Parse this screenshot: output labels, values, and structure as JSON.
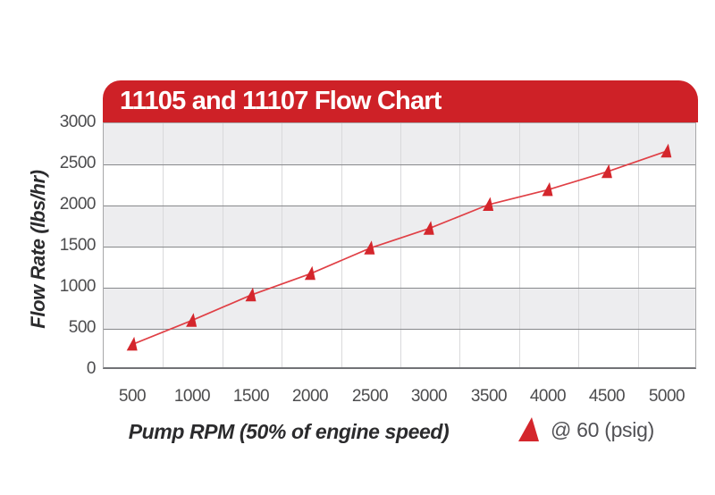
{
  "header": {
    "title": "11105 and 11107 Flow Chart"
  },
  "colors": {
    "banner_red": "#ce2127",
    "marker_red": "#d4262c",
    "line_red": "#e04046",
    "band_gray": "#ededef",
    "grid_dark": "#87888b",
    "grid_light": "#d9d9db",
    "tick_text": "#4c4c4e",
    "axis_title_text": "#2b2b2d",
    "legend_text": "#515155"
  },
  "chart_data": {
    "type": "line",
    "title": "11105 and 11107 Flow Chart",
    "xlabel": "Pump RPM (50% of engine speed)",
    "ylabel": "Flow Rate (lbs/hr)",
    "x": [
      500,
      1000,
      1500,
      2000,
      2500,
      3000,
      3500,
      4000,
      4500,
      5000
    ],
    "x_tick_labels": [
      "500",
      "1000",
      "1500",
      "2000",
      "2500",
      "3000",
      "3500",
      "4000",
      "4500",
      "5000"
    ],
    "y_ticks": [
      0,
      500,
      1000,
      1500,
      2000,
      2500,
      3000
    ],
    "y_tick_labels": [
      "0",
      "500",
      "1000",
      "1500",
      "2000",
      "2500",
      "3000"
    ],
    "ylim": [
      0,
      3000
    ],
    "series": [
      {
        "name": "@ 60 (psig)",
        "marker": "triangle",
        "color": "#d4262c",
        "values": [
          300,
          590,
          900,
          1160,
          1470,
          1710,
          2000,
          2180,
          2400,
          2650
        ]
      }
    ],
    "grid": "alternating horizontal gray bands, vertical category-boundary gridlines",
    "legend_position": "bottom-right"
  },
  "legend": {
    "label": "@ 60 (psig)"
  }
}
